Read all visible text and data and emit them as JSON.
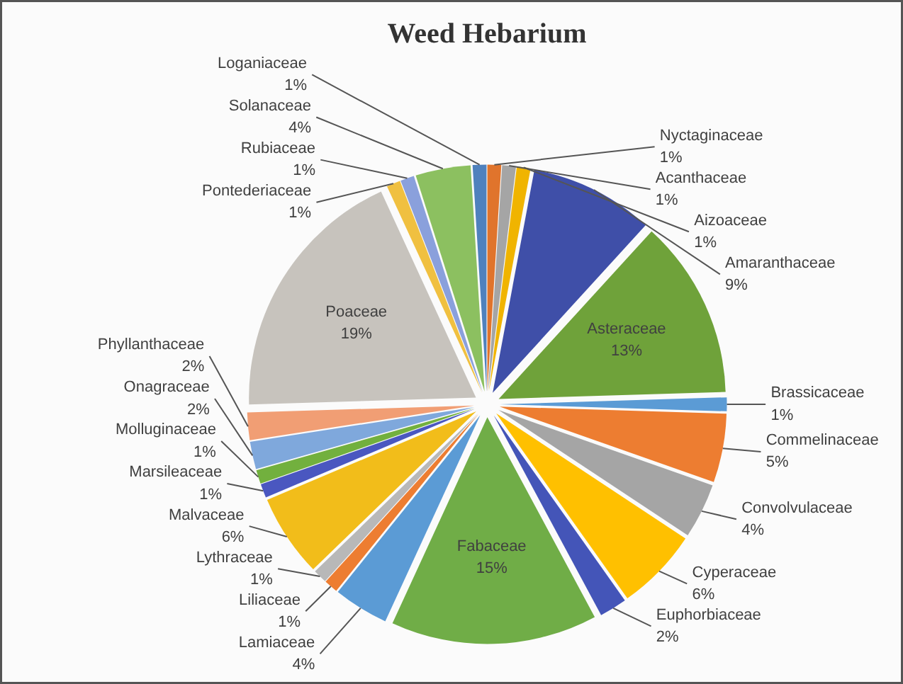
{
  "chart_data": {
    "type": "pie",
    "title": "Weed Hebarium",
    "categories": [
      "Nyctaginaceae",
      "Acanthaceae",
      "Aizoaceae",
      "Amaranthaceae",
      "Asteraceae",
      "Brassicaceae",
      "Commelinaceae",
      "Convolvulaceae",
      "Cyperaceae",
      "Euphorbiaceae",
      "Fabaceae",
      "Lamiaceae",
      "Liliaceae",
      "Lythraceae",
      "Malvaceae",
      "Marsileaceae",
      "Molluginaceae",
      "Onagraceae",
      "Phyllanthaceae",
      "Poaceae",
      "Pontederiaceae",
      "Rubiaceae",
      "Solanaceae",
      "Loganiaceae"
    ],
    "values": [
      1,
      1,
      1,
      9,
      13,
      1,
      5,
      4,
      6,
      2,
      15,
      4,
      1,
      1,
      6,
      1,
      1,
      2,
      2,
      19,
      1,
      1,
      4,
      1
    ],
    "value_labels": [
      "1%",
      "1%",
      "1%",
      "9%",
      "13%",
      "1%",
      "5%",
      "4%",
      "6%",
      "2%",
      "15%",
      "4%",
      "1%",
      "1%",
      "6%",
      "1%",
      "1%",
      "2%",
      "2%",
      "19%",
      "1%",
      "1%",
      "4%",
      "1%"
    ],
    "colors": [
      "#e0742c",
      "#a5a5a5",
      "#f0b400",
      "#3f4fa8",
      "#6fa23a",
      "#5b9bd5",
      "#ed7d31",
      "#a5a5a5",
      "#ffc000",
      "#4455b8",
      "#70ad47",
      "#5b9bd5",
      "#ed7d31",
      "#b8b8b8",
      "#f2bd1a",
      "#4a57c0",
      "#72b03e",
      "#7fa8dc",
      "#f19e74",
      "#c7c3bd",
      "#f0c040",
      "#8aa0dc",
      "#8cc060",
      "#4f81bd"
    ]
  }
}
